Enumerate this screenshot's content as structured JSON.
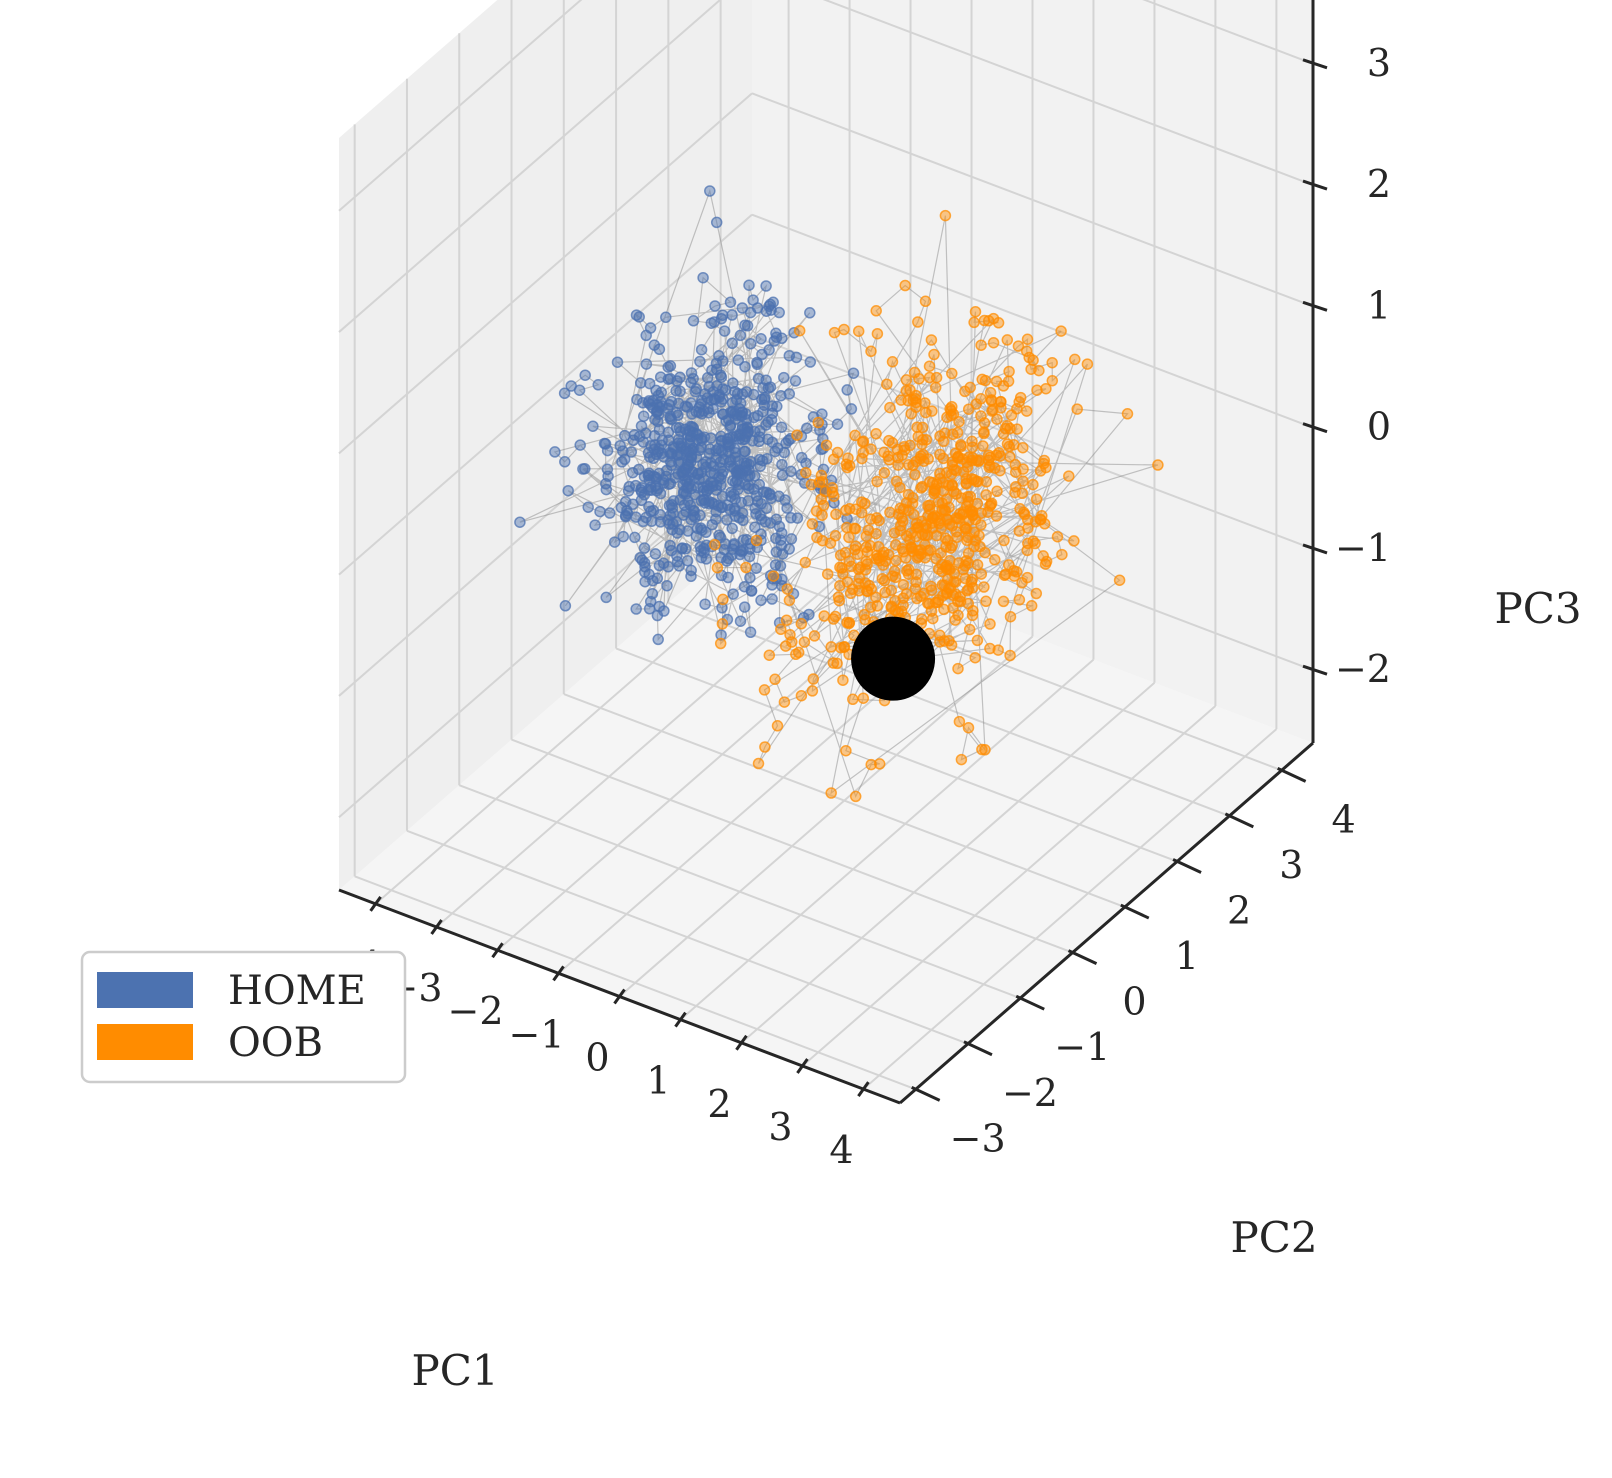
{
  "chart_data": {
    "type": "scatter",
    "projection": "3d",
    "title": "",
    "xlabel": "PC1",
    "ylabel": "PC2",
    "zlabel": "PC3",
    "xlim": [
      -4.6,
      4.6
    ],
    "ylim": [
      -3.3,
      4.6
    ],
    "zlim": [
      -2.6,
      3.6
    ],
    "x_ticks": [
      "−4",
      "−3",
      "−2",
      "−1",
      "0",
      "1",
      "2",
      "3",
      "4"
    ],
    "y_ticks": [
      "−3",
      "−2",
      "−1",
      "0",
      "1",
      "2",
      "3",
      "4"
    ],
    "z_ticks": [
      "−2",
      "−1",
      "0",
      "1",
      "2",
      "3"
    ],
    "grid": true,
    "legend_position": "lower-left",
    "series": [
      {
        "name": "HOME",
        "color": "#4c72b0",
        "marker": "circle",
        "connected": true,
        "approx_center": [
          -1.5,
          0.2,
          0.2
        ],
        "approx_spread": [
          1.2,
          1.1,
          0.8
        ],
        "sample_points": [
          [
            -2.5,
            0.0,
            0.3
          ],
          [
            -2.0,
            0.5,
            0.6
          ],
          [
            -1.5,
            0.3,
            0.2
          ],
          [
            -1.0,
            -0.2,
            0.4
          ],
          [
            -0.8,
            0.8,
            -0.2
          ],
          [
            -2.8,
            -0.5,
            -0.3
          ],
          [
            -1.8,
            1.2,
            0.9
          ],
          [
            -0.5,
            0.0,
            0.0
          ]
        ]
      },
      {
        "name": "OOB",
        "color": "#ff8c00",
        "marker": "circle",
        "connected": true,
        "approx_center": [
          1.5,
          1.0,
          0.0
        ],
        "approx_spread": [
          1.3,
          1.5,
          1.0
        ],
        "sample_points": [
          [
            0.5,
            0.0,
            0.5
          ],
          [
            1.0,
            1.5,
            1.2
          ],
          [
            2.0,
            2.5,
            -0.5
          ],
          [
            2.8,
            3.0,
            -1.0
          ],
          [
            1.5,
            -1.0,
            -1.5
          ],
          [
            0.8,
            2.0,
            2.0
          ],
          [
            2.2,
            0.5,
            0.8
          ],
          [
            3.0,
            3.5,
            -0.2
          ]
        ]
      }
    ],
    "annotations": [
      {
        "type": "marker",
        "color": "#000000",
        "label": "",
        "position": [
          1.4,
          0.3,
          -0.9
        ]
      }
    ]
  },
  "legend": {
    "items": [
      {
        "label": "HOME",
        "color": "#4c72b0"
      },
      {
        "label": "OOB",
        "color": "#ff8c00"
      }
    ]
  }
}
